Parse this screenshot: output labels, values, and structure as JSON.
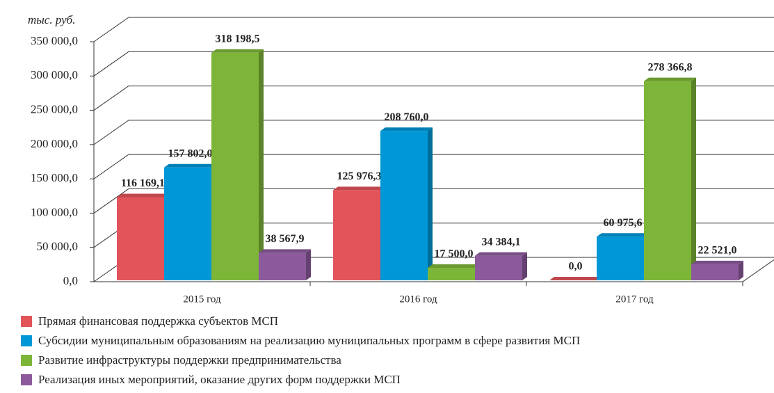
{
  "chart_data": {
    "type": "bar",
    "y_label": "тыс. руб.",
    "categories": [
      "2015 год",
      "2016 год",
      "2017 год"
    ],
    "series": [
      {
        "name": "Прямая финансовая поддержка субъектов МСП",
        "color": "#e2535a",
        "values": [
          116169.1,
          125976.3,
          0
        ],
        "value_labels": [
          "116 169,1",
          "125 976,3",
          "0,0"
        ]
      },
      {
        "name": "Субсидии муниципальным образованиям на реализацию муниципальных программ в сфере развития МСП",
        "color": "#0097d7",
        "values": [
          157802.0,
          208760.0,
          60975.6
        ],
        "value_labels": [
          "157 802,0",
          "208 760,0",
          "60 975,6"
        ]
      },
      {
        "name": "Развитие инфраструктуры поддержки предпринимательства",
        "color": "#7db538",
        "values": [
          318198.5,
          17500.0,
          278366.8
        ],
        "value_labels": [
          "318 198,5",
          "17 500,0",
          "278 366,8"
        ]
      },
      {
        "name": "Реализация иных мероприятий, оказание других форм поддержки МСП",
        "color": "#8c5a9c",
        "values": [
          38567.9,
          34384.1,
          22521.0
        ],
        "value_labels": [
          "38 567,9",
          "34 384,1",
          "22 521,0"
        ]
      }
    ],
    "ylim": [
      0,
      350000
    ],
    "yticks": [
      {
        "value": 0,
        "label": "0,0"
      },
      {
        "value": 50000,
        "label": "50 000,0"
      },
      {
        "value": 100000,
        "label": "100 000,0"
      },
      {
        "value": 150000,
        "label": "150 000,0"
      },
      {
        "value": 200000,
        "label": "200 000,0"
      },
      {
        "value": 250000,
        "label": "250 000,0"
      },
      {
        "value": 300000,
        "label": "300 000,0"
      },
      {
        "value": 350000,
        "label": "350 000,0"
      }
    ],
    "grid": true
  }
}
